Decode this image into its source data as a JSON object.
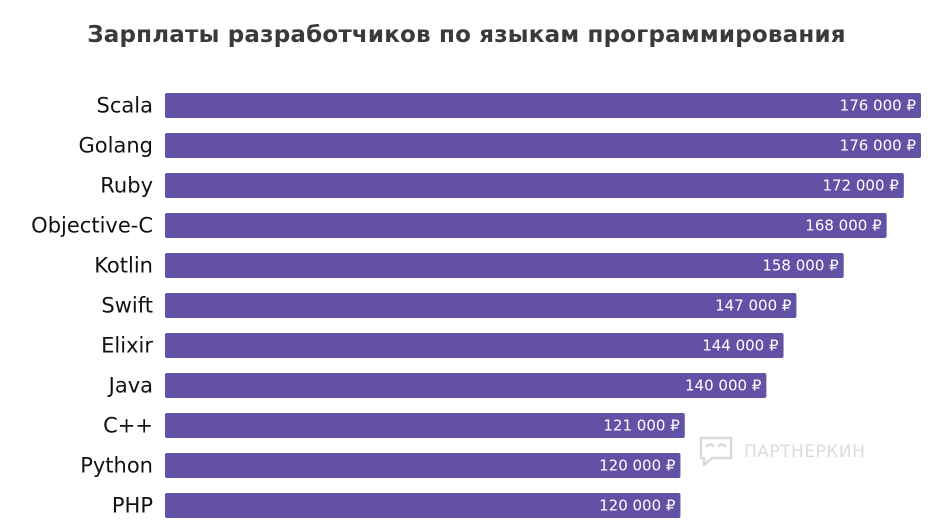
{
  "chart_data": {
    "type": "bar",
    "orientation": "horizontal",
    "title": "Зарплаты разработчиков по языкам программирования",
    "categories": [
      "Scala",
      "Golang",
      "Ruby",
      "Objective-C",
      "Kotlin",
      "Swift",
      "Elixir",
      "Java",
      "C++",
      "Python",
      "PHP"
    ],
    "values": [
      176000,
      176000,
      172000,
      168000,
      158000,
      147000,
      144000,
      140000,
      121000,
      120000,
      120000
    ],
    "value_labels": [
      "176 000 ₽",
      "176 000 ₽",
      "172 000 ₽",
      "168 000 ₽",
      "158 000 ₽",
      "147 000 ₽",
      "144 000 ₽",
      "140 000 ₽",
      "121 000 ₽",
      "120 000 ₽",
      "120 000 ₽"
    ],
    "xlim": [
      0,
      176000
    ],
    "bar_color": "#6351a5",
    "grid": false,
    "legend": "none"
  },
  "watermark": {
    "text": "ПАРТНЕРКИН",
    "icon": "chat-bubble-icon"
  }
}
